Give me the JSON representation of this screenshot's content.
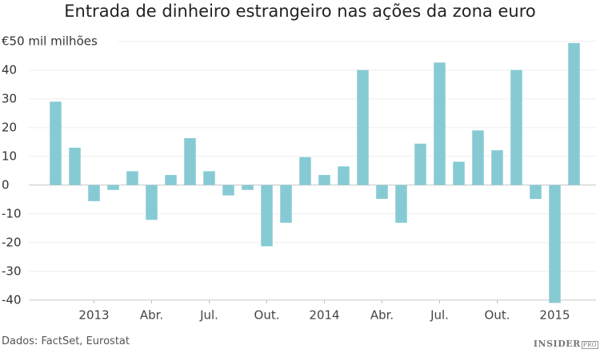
{
  "chart_data": {
    "type": "bar",
    "title": "Entrada de dinheiro estrangeiro nas ações da zona euro",
    "ylabel": "€50 mil milhões",
    "ylim": [
      -40,
      50
    ],
    "yticks": [
      -40,
      -30,
      -20,
      -10,
      0,
      10,
      20,
      30,
      40
    ],
    "top_tick_label": "€50 mil milhões",
    "grid": true,
    "color": "#86cad4",
    "categories": [
      "2012-11",
      "2012-12",
      "2013-01",
      "2013-02",
      "2013-03",
      "2013-04",
      "2013-05",
      "2013-06",
      "2013-07",
      "2013-08",
      "2013-09",
      "2013-10",
      "2013-11",
      "2013-12",
      "2014-01",
      "2014-02",
      "2014-03",
      "2014-04",
      "2014-05",
      "2014-06",
      "2014-07",
      "2014-08",
      "2014-09",
      "2014-10",
      "2014-11",
      "2014-12",
      "2015-01",
      "2015-02"
    ],
    "values": [
      29,
      13,
      -5.6,
      -1.7,
      4.8,
      -12.1,
      3.5,
      16.3,
      4.8,
      -3.6,
      -1.7,
      -21.3,
      -13.1,
      9.7,
      3.5,
      6.5,
      40,
      -4.8,
      -13.1,
      14.4,
      42.6,
      8.1,
      19,
      12.1,
      40,
      -4.8,
      -41,
      49.4
    ],
    "xtick_labels": [
      {
        "category": "2013-01",
        "label": "2013",
        "bold": true
      },
      {
        "category": "2013-04",
        "label": "Abr.",
        "bold": false
      },
      {
        "category": "2013-07",
        "label": "Jul.",
        "bold": false
      },
      {
        "category": "2013-10",
        "label": "Out.",
        "bold": false
      },
      {
        "category": "2014-01",
        "label": "2014",
        "bold": true
      },
      {
        "category": "2014-04",
        "label": "Abr.",
        "bold": false
      },
      {
        "category": "2014-07",
        "label": "Jul.",
        "bold": false
      },
      {
        "category": "2014-10",
        "label": "Out.",
        "bold": false
      },
      {
        "category": "2015-01",
        "label": "2015",
        "bold": true
      }
    ]
  },
  "footer": {
    "source": "Dados: FactSet, Eurostat",
    "logo": "INSIDER",
    "logo_suffix": "PRO"
  }
}
